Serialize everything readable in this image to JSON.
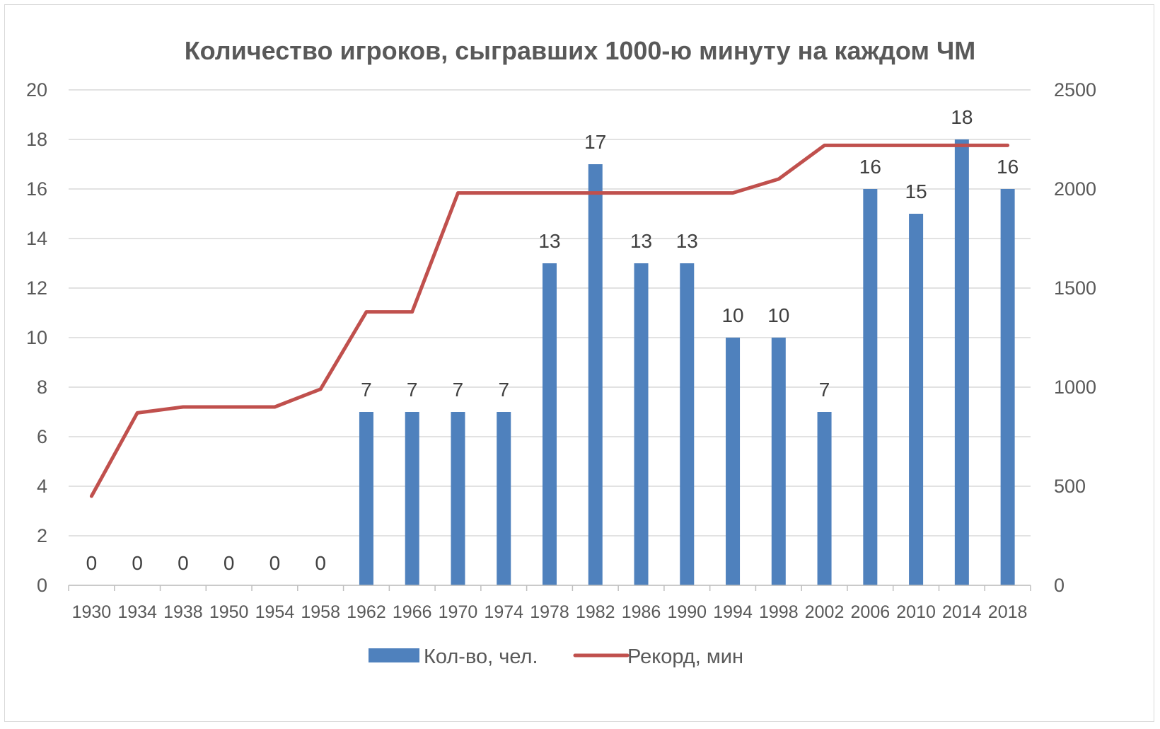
{
  "chart_data": {
    "type": "bar+line",
    "title": "Количество игроков, сыгравших 1000-ю минуту на каждом ЧМ",
    "categories": [
      "1930",
      "1934",
      "1938",
      "1950",
      "1954",
      "1958",
      "1962",
      "1966",
      "1970",
      "1974",
      "1978",
      "1982",
      "1986",
      "1990",
      "1994",
      "1998",
      "2002",
      "2006",
      "2010",
      "2014",
      "2018"
    ],
    "series": [
      {
        "name": "Кол-во, чел.",
        "type": "bar",
        "axis": "left",
        "color": "#4f81bd",
        "values": [
          0,
          0,
          0,
          0,
          0,
          0,
          7,
          7,
          7,
          7,
          13,
          17,
          13,
          13,
          10,
          10,
          7,
          16,
          15,
          18,
          16
        ],
        "data_labels": [
          "0",
          "0",
          "0",
          "0",
          "0",
          "0",
          "7",
          "7",
          "7",
          "7",
          "13",
          "17",
          "13",
          "13",
          "10",
          "10",
          "7",
          "16",
          "15",
          "18",
          "16"
        ]
      },
      {
        "name": "Рекорд, мин",
        "type": "line",
        "axis": "right",
        "color": "#c0504d",
        "values": [
          450,
          870,
          900,
          900,
          900,
          990,
          1380,
          1380,
          1980,
          1980,
          1980,
          1980,
          1980,
          1980,
          1980,
          2050,
          2220,
          2220,
          2220,
          2220,
          2220
        ]
      }
    ],
    "y_left": {
      "min": 0,
      "max": 20,
      "ticks": [
        "0",
        "2",
        "4",
        "6",
        "8",
        "10",
        "12",
        "14",
        "16",
        "18",
        "20"
      ]
    },
    "y_right": {
      "min": 0,
      "max": 2500,
      "ticks": [
        "0",
        "500",
        "1000",
        "1500",
        "2000",
        "2500"
      ]
    },
    "grid": true,
    "legend": "bottom"
  }
}
